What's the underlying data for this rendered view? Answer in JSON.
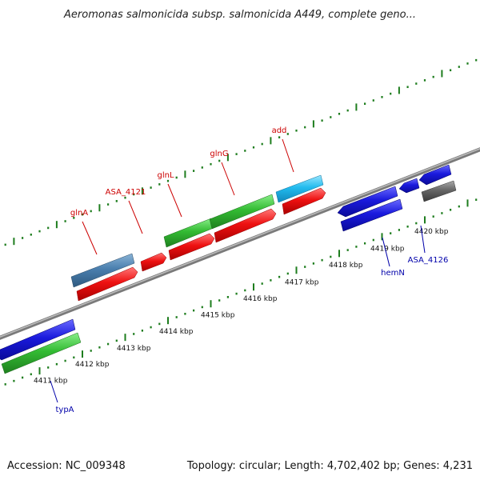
{
  "title": "Aeromonas salmonicida subsp. salmonicida A449, complete geno...",
  "footer": {
    "accession": "Accession: NC_009348",
    "summary": "Topology: circular; Length: 4,702,402 bp; Genes: 4,231"
  },
  "colors": {
    "backbone": "#8a8a8a",
    "tick": "#1e7d1e",
    "red": "#ee1111",
    "green": "#33bb33",
    "blue": "#1a1add",
    "steel": "#4a7fae",
    "cyan": "#22bbee",
    "gray": "#666666",
    "label_red": "#cc0000",
    "label_blue": "#0000aa"
  },
  "ticks": [
    {
      "label": "4411 kbp"
    },
    {
      "label": "4412 kbp"
    },
    {
      "label": "4413 kbp"
    },
    {
      "label": "4414 kbp"
    },
    {
      "label": "4415 kbp"
    },
    {
      "label": "4416 kbp"
    },
    {
      "label": "4417 kbp"
    },
    {
      "label": "4418 kbp"
    },
    {
      "label": "4419 kbp"
    },
    {
      "label": "4420 kbp"
    }
  ],
  "genes": [
    {
      "name": "typA",
      "strand": "reverse",
      "color": "blue"
    },
    {
      "name": "glnA",
      "strand": "forward",
      "color": "red"
    },
    {
      "name": "ASA_4121",
      "strand": "forward",
      "color": "red"
    },
    {
      "name": "glnL",
      "strand": "forward",
      "color": "red"
    },
    {
      "name": "glnG",
      "strand": "forward",
      "color": "red"
    },
    {
      "name": "add",
      "strand": "forward",
      "color": "red"
    },
    {
      "name": "hemN",
      "strand": "reverse",
      "color": "blue"
    },
    {
      "name": "ASA_4126",
      "strand": "reverse",
      "color": "gray"
    }
  ]
}
